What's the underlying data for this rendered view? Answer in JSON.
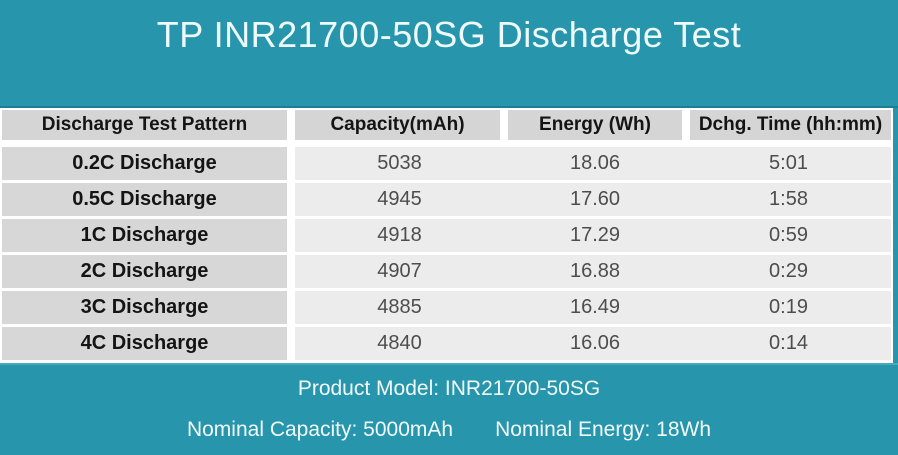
{
  "title_bar": {
    "title": "TP INR21700-50SG Discharge Test"
  },
  "table": {
    "columns": [
      "Discharge Test Pattern",
      "Capacity(mAh)",
      "Energy (Wh)",
      "Dchg. Time (hh:mm)"
    ],
    "rows": [
      {
        "pattern": "0.2C Discharge",
        "capacity": "5038",
        "energy": "18.06",
        "time": "5:01"
      },
      {
        "pattern": "0.5C Discharge",
        "capacity": "4945",
        "energy": "17.60",
        "time": "1:58"
      },
      {
        "pattern": "1C Discharge",
        "capacity": "4918",
        "energy": "17.29",
        "time": "0:59"
      },
      {
        "pattern": "2C Discharge",
        "capacity": "4907",
        "energy": "16.88",
        "time": "0:29"
      },
      {
        "pattern": "3C Discharge",
        "capacity": "4885",
        "energy": "16.49",
        "time": "0:19"
      },
      {
        "pattern": "4C Discharge",
        "capacity": "4840",
        "energy": "16.06",
        "time": "0:14"
      }
    ]
  },
  "footer": {
    "product_model": "Product Model: INR21700-50SG",
    "nominal_capacity": "Nominal Capacity: 5000mAh",
    "nominal_energy": "Nominal Energy: 18Wh"
  },
  "colors": {
    "teal": "#2795ab",
    "teal_dark_edge": "#1b7e93",
    "teal_light_edge": "#45acc0",
    "header_cell_bg": "#d5d5d5",
    "pattern_cell_bg": "#d7d7d7",
    "data_cell_bg": "#ececec",
    "heading_text": "#141414",
    "data_text": "#4d4d4d",
    "title_text": "#eefafb"
  },
  "chart_data": {
    "type": "table",
    "title": "TP INR21700-50SG Discharge Test",
    "columns": [
      "Discharge Test Pattern",
      "Capacity(mAh)",
      "Energy (Wh)",
      "Dchg. Time (hh:mm)"
    ],
    "rows": [
      [
        "0.2C Discharge",
        5038,
        18.06,
        "5:01"
      ],
      [
        "0.5C Discharge",
        4945,
        17.6,
        "1:58"
      ],
      [
        "1C Discharge",
        4918,
        17.29,
        "0:59"
      ],
      [
        "2C Discharge",
        4907,
        16.88,
        "0:29"
      ],
      [
        "3C Discharge",
        4885,
        16.49,
        "0:19"
      ],
      [
        "4C Discharge",
        4840,
        16.06,
        "0:14"
      ]
    ],
    "footnotes": [
      "Product Model: INR21700-50SG",
      "Nominal Capacity: 5000mAh",
      "Nominal Energy: 18Wh"
    ]
  }
}
